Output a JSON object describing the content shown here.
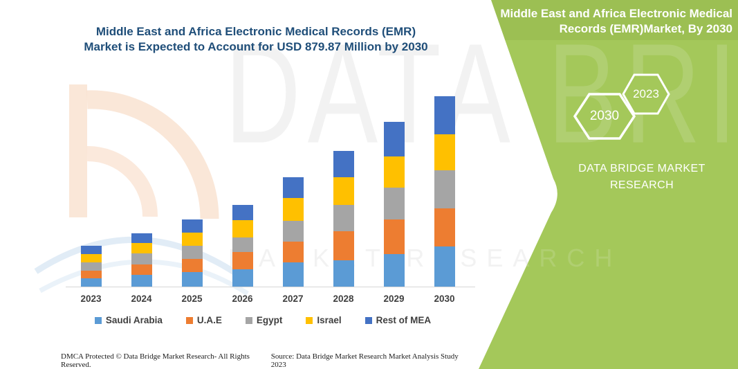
{
  "page": {
    "title_line1": "Middle East and Africa Electronic Medical Records (EMR)",
    "title_line2": "Market is Expected to Account for USD 879.87 Million by 2030"
  },
  "side_panel": {
    "background_color": "#a4c85a",
    "title": "Middle East and Africa Electronic Medical Records (EMR)Market, By 2030",
    "hexagon_large_label": "2030",
    "hexagon_small_label": "2023",
    "brand_line1": "DATA BRIDGE MARKET",
    "brand_line2": "RESEARCH"
  },
  "watermark": {
    "brand_text": "DATA BRIDGE",
    "sub_text": "MARKET RESEARCH"
  },
  "footer": {
    "left": "DMCA Protected © Data Bridge Market Research-  All Rights Reserved.",
    "right": "Source: Data Bridge Market Research  Market Analysis Study 2023"
  },
  "chart_data": {
    "type": "bar",
    "stacked": true,
    "unit": "USD Million",
    "title": "Middle East and Africa Electronic Medical Records (EMR) Market is Expected to Account for USD 879.87 Million by 2030",
    "categories": [
      "2023",
      "2024",
      "2025",
      "2026",
      "2027",
      "2028",
      "2029",
      "2030"
    ],
    "series": [
      {
        "name": "Saudi Arabia",
        "color": "#5B9BD5",
        "values": [
          38,
          56,
          67,
          80,
          112,
          122,
          149,
          186.1
        ]
      },
      {
        "name": "U.A.E",
        "color": "#ED7D31",
        "values": [
          37,
          48,
          61,
          80,
          96,
          133,
          160,
          175.6
        ]
      },
      {
        "name": "Egypt",
        "color": "#A5A5A5",
        "values": [
          38,
          50,
          61,
          67,
          96,
          122,
          149,
          175.6
        ]
      },
      {
        "name": "Israel",
        "color": "#FFC000",
        "values": [
          36,
          49,
          61,
          80,
          106,
          130,
          144,
          165.0
        ]
      },
      {
        "name": "Rest of MEA",
        "color": "#4472C4",
        "values": [
          41,
          45,
          61,
          71,
          96,
          120,
          159,
          177.57
        ]
      }
    ],
    "totals": [
      190,
      248,
      311,
      378,
      506,
      627,
      761,
      879.87
    ],
    "ylim": [
      0,
      900
    ],
    "xlabel": "",
    "ylabel": "USD Million",
    "grid": false,
    "legend_position": "bottom"
  }
}
